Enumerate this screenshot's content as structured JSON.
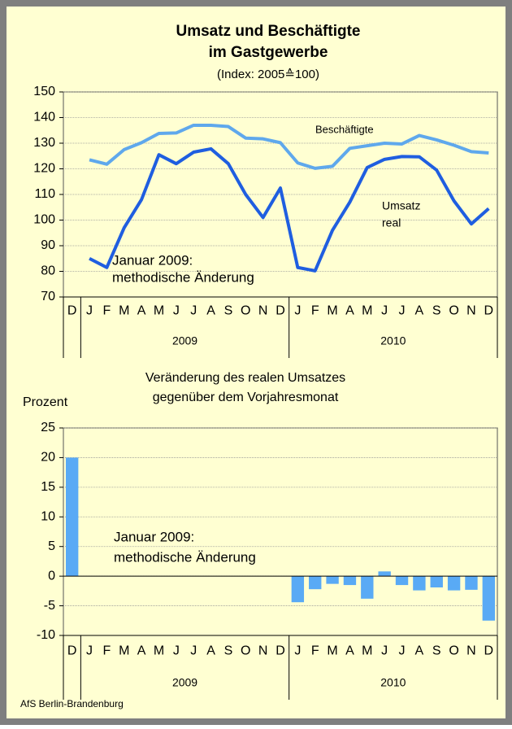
{
  "footer": "AfS Berlin-Brandenburg",
  "chart_data": [
    {
      "type": "line",
      "title": [
        "Umsatz und Beschäftigte",
        "im Gastgewerbe"
      ],
      "subtitle": "(Index: 2005≙100)",
      "categories": [
        "D",
        "J",
        "F",
        "M",
        "A",
        "M",
        "J",
        "J",
        "A",
        "S",
        "O",
        "N",
        "D",
        "J",
        "F",
        "M",
        "A",
        "M",
        "J",
        "J",
        "A",
        "S",
        "O",
        "N",
        "D"
      ],
      "groups": [
        "2009",
        "2010"
      ],
      "ylim": [
        70,
        150
      ],
      "yticks": [
        70,
        80,
        90,
        100,
        110,
        120,
        130,
        140,
        150
      ],
      "grid": true,
      "series": [
        {
          "name": "Beschäftigte",
          "color": "#5fa8ec",
          "values": [
            null,
            123.5,
            121.8,
            127.5,
            130.2,
            133.8,
            134,
            137,
            137,
            136.5,
            132,
            131.7,
            130.2,
            122.3,
            120.2,
            121,
            128,
            129,
            130,
            129.7,
            133,
            131.3,
            129.2,
            126.7,
            126.2
          ]
        },
        {
          "name": "Umsatz real",
          "color": "#1f5ee0",
          "values": [
            null,
            85,
            81.5,
            97,
            108,
            125.5,
            122,
            126.5,
            127.8,
            122,
            110,
            101,
            112.5,
            81.5,
            80.2,
            96,
            107,
            120.5,
            123.7,
            124.8,
            124.7,
            119.5,
            107.5,
            98.5,
            104.5
          ]
        }
      ],
      "annotations": [
        [
          "Beschäftigte"
        ],
        [
          "Umsatz",
          "real"
        ],
        [
          "Januar 2009:",
          "methodische Änderung"
        ]
      ]
    },
    {
      "type": "bar",
      "title": [
        "Veränderung des realen Umsatzes",
        "gegenüber dem Vorjahresmonat"
      ],
      "ylabel": "Prozent",
      "categories": [
        "D",
        "J",
        "F",
        "M",
        "A",
        "M",
        "J",
        "J",
        "A",
        "S",
        "O",
        "N",
        "D",
        "J",
        "F",
        "M",
        "A",
        "M",
        "J",
        "J",
        "A",
        "S",
        "O",
        "N",
        "D"
      ],
      "groups": [
        "2009",
        "2010"
      ],
      "ylim": [
        -10,
        25
      ],
      "yticks": [
        -10,
        -5,
        0,
        5,
        10,
        15,
        20,
        25
      ],
      "grid": true,
      "color": "#59aaf5",
      "values": [
        20,
        null,
        null,
        null,
        null,
        null,
        null,
        null,
        null,
        null,
        null,
        null,
        null,
        -4.4,
        -2.2,
        -1.3,
        -1.5,
        -3.8,
        0.8,
        -1.5,
        -2.4,
        -1.9,
        -2.4,
        -2.3,
        -7.5
      ],
      "annotations": [
        [
          "Januar 2009:",
          "methodische Änderung"
        ]
      ]
    }
  ]
}
